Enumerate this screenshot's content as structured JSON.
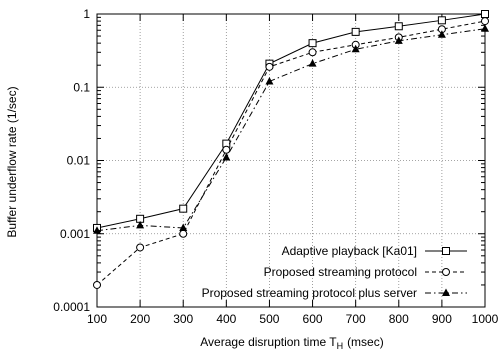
{
  "chart_data": {
    "type": "line",
    "title": "",
    "xlabel": "Average disruption time T",
    "xlabel_subscript": "H",
    "xlabel_unit": "(msec)",
    "ylabel": "Buffer underflow rate (1/sec)",
    "x": [
      100,
      200,
      300,
      400,
      500,
      600,
      700,
      800,
      900,
      1000
    ],
    "x_ticks": [
      "100",
      "200",
      "300",
      "400",
      "500",
      "600",
      "700",
      "800",
      "900",
      "1000"
    ],
    "y_scale": "log",
    "y_ticks": [
      "0.0001",
      "0.001",
      "0.01",
      "0.1",
      "1"
    ],
    "xlim": [
      100,
      1000
    ],
    "ylim": [
      0.0001,
      1
    ],
    "grid": true,
    "legend_position": "bottom-right",
    "series": [
      {
        "name": "Adaptive playback [Ka01]",
        "marker": "square",
        "dash": "solid",
        "values": [
          0.0012,
          0.0016,
          0.0022,
          0.017,
          0.21,
          0.4,
          0.57,
          0.68,
          0.82,
          1.0
        ]
      },
      {
        "name": "Proposed streaming protocol",
        "marker": "circle",
        "dash": "dashed",
        "values": [
          0.0002,
          0.00065,
          0.001,
          0.014,
          0.19,
          0.3,
          0.38,
          0.48,
          0.62,
          0.8
        ]
      },
      {
        "name": "Proposed streaming protocol plus server",
        "marker": "triangle",
        "dash": "dashdot",
        "values": [
          0.0011,
          0.0013,
          0.0012,
          0.011,
          0.12,
          0.21,
          0.33,
          0.43,
          0.52,
          0.63
        ]
      }
    ]
  }
}
